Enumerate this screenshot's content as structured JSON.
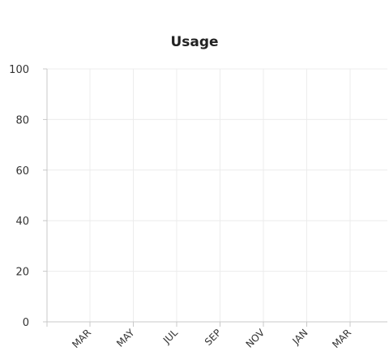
{
  "chart_data": {
    "type": "line",
    "title": "Usage",
    "xlabel": "",
    "ylabel": "",
    "categories": [
      "MAR",
      "MAY",
      "JUL",
      "SEP",
      "NOV",
      "JAN",
      "MAR"
    ],
    "ylim": [
      0,
      100
    ],
    "yticks": [
      0,
      20,
      40,
      60,
      80,
      100
    ],
    "series": [],
    "grid": true,
    "legend": "none",
    "colors": {
      "grid": "#ececec",
      "axis": "#c8c8c8",
      "text": "#333333"
    }
  }
}
